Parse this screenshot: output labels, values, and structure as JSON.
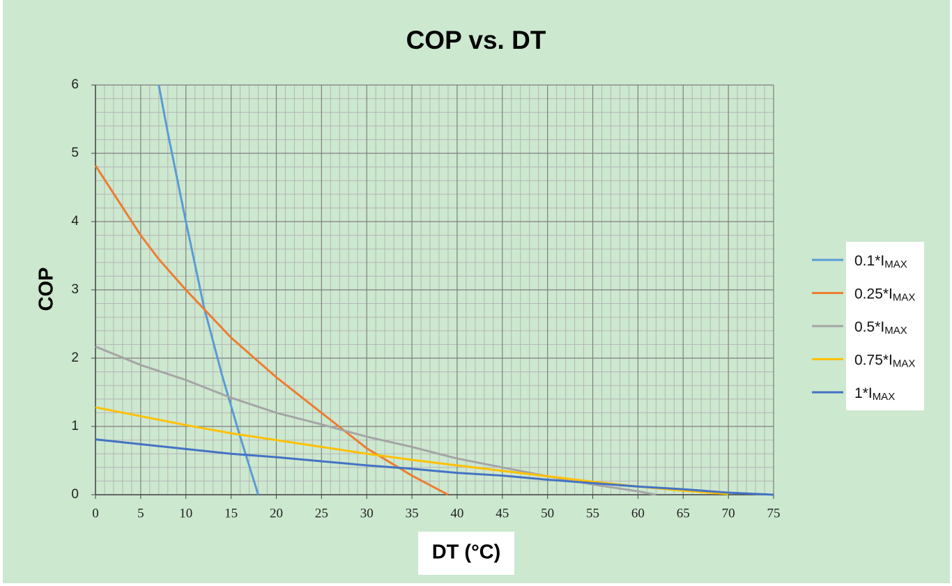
{
  "chart_data": {
    "type": "line",
    "title": "COP vs. DT",
    "x_label": "DT (°C)",
    "y_label": "COP",
    "xlim": [
      0,
      75
    ],
    "xticks": [
      0,
      5,
      10,
      15,
      20,
      25,
      30,
      35,
      40,
      45,
      50,
      55,
      60,
      65,
      70,
      75
    ],
    "ylim": [
      0,
      6
    ],
    "yticks": [
      0,
      1,
      2,
      3,
      4,
      5,
      6
    ],
    "grid": true,
    "series": [
      {
        "name": "0.1*IMAX",
        "color": "#5b9bd5",
        "x": [
          7,
          8,
          10,
          12,
          14,
          16,
          18
        ],
        "values": [
          6,
          5.3,
          4,
          2.75,
          1.75,
          0.85,
          0
        ]
      },
      {
        "name": "0.25*IMAX",
        "color": "#ed7d31",
        "x": [
          0,
          5,
          7,
          10,
          15,
          20,
          25,
          30,
          35,
          39
        ],
        "values": [
          4.82,
          3.8,
          3.45,
          3.0,
          2.3,
          1.72,
          1.2,
          0.68,
          0.28,
          0
        ]
      },
      {
        "name": "0.5*IMAX",
        "color": "#a5a5a5",
        "x": [
          0,
          5,
          10,
          15,
          20,
          25,
          30,
          35,
          40,
          45,
          50,
          55,
          60,
          62
        ],
        "values": [
          2.17,
          1.9,
          1.68,
          1.42,
          1.2,
          1.03,
          0.85,
          0.7,
          0.53,
          0.4,
          0.27,
          0.15,
          0.05,
          0
        ]
      },
      {
        "name": "0.75*IMAX",
        "color": "#ffc000",
        "x": [
          0,
          5,
          10,
          15,
          20,
          25,
          30,
          35,
          40,
          45,
          50,
          55,
          60,
          65,
          70
        ],
        "values": [
          1.28,
          1.15,
          1.02,
          0.9,
          0.8,
          0.7,
          0.6,
          0.51,
          0.43,
          0.35,
          0.27,
          0.19,
          0.12,
          0.06,
          0.01
        ]
      },
      {
        "name": "1*IMAX",
        "color": "#4472c4",
        "x": [
          0,
          5,
          10,
          15,
          20,
          25,
          30,
          35,
          40,
          45,
          50,
          55,
          60,
          65,
          70,
          75
        ],
        "values": [
          0.81,
          0.74,
          0.67,
          0.6,
          0.55,
          0.49,
          0.43,
          0.38,
          0.32,
          0.28,
          0.22,
          0.17,
          0.12,
          0.08,
          0.03,
          0
        ]
      }
    ],
    "legend": "right"
  }
}
